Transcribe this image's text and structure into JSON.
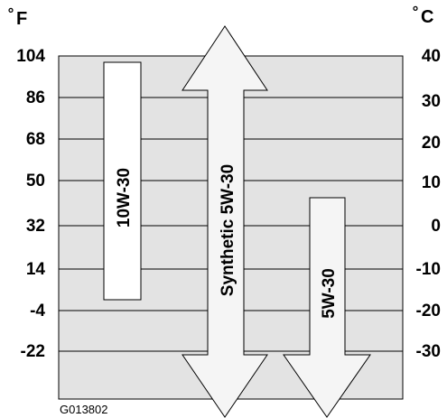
{
  "units": {
    "left_symbol": "°",
    "left_unit": "F",
    "right_symbol": "°",
    "right_unit": "C"
  },
  "fahrenheit_ticks": [
    "104",
    "86",
    "68",
    "50",
    "32",
    "14",
    "-4",
    "-22"
  ],
  "celsius_ticks": [
    "40",
    "30",
    "20",
    "10",
    "0",
    "-10",
    "-20",
    "-30"
  ],
  "oil_grades": {
    "grade_10w30": "10W-30",
    "grade_synthetic": "Synthetic 5W-30",
    "grade_5w30": "5W-30"
  },
  "figure_code": "G013802",
  "colors": {
    "panel": "#e3e3e3",
    "arrow_fill": "#f5f5f5",
    "bar_fill": "#ffffff",
    "stroke": "#000000"
  }
}
